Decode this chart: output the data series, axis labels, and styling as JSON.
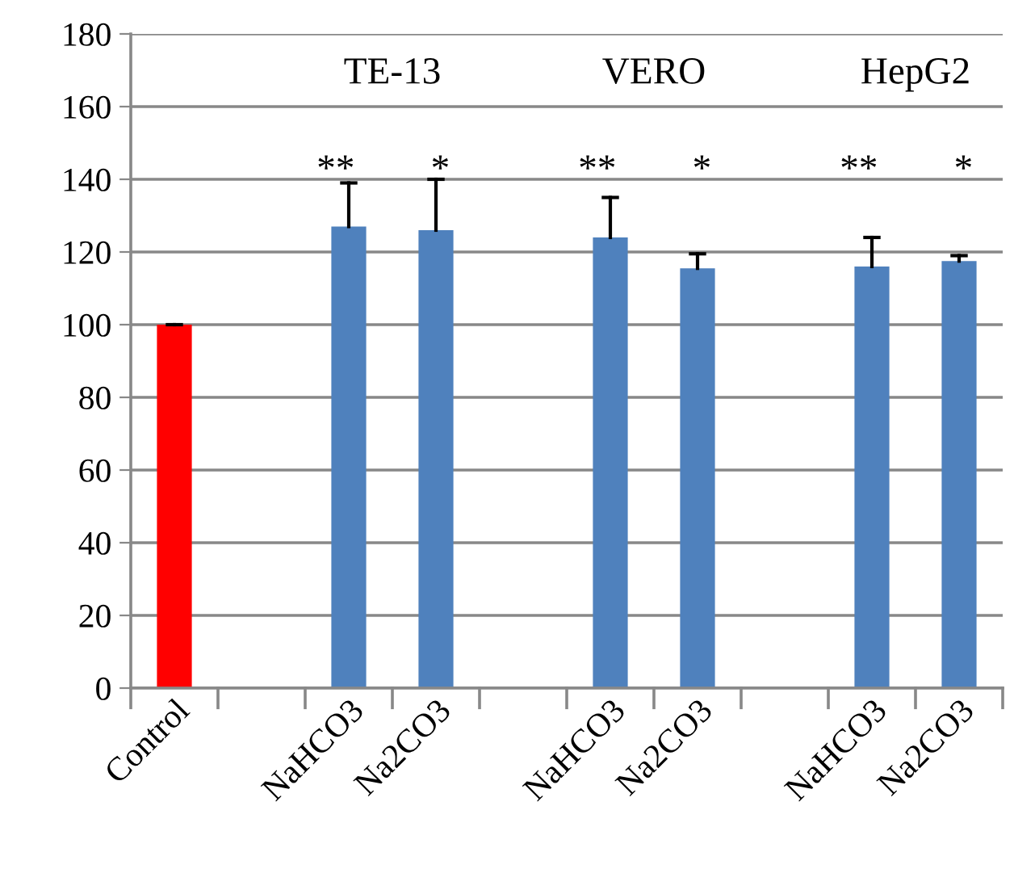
{
  "chart_data": {
    "type": "bar",
    "categories": [
      "Control",
      null,
      "NaHCO3",
      "Na2CO3",
      null,
      "NaHCO3",
      "Na2CO3",
      null,
      "NaHCO3",
      "Na2CO3"
    ],
    "values": [
      100,
      null,
      127,
      126,
      null,
      124,
      115.5,
      null,
      116,
      117.5
    ],
    "colors": [
      "#ff0000",
      null,
      "#4f81bd",
      "#4f81bd",
      null,
      "#4f81bd",
      "#4f81bd",
      null,
      "#4f81bd",
      "#4f81bd"
    ],
    "errors": [
      [
        100,
        100
      ],
      null,
      [
        127,
        139
      ],
      [
        126,
        140
      ],
      null,
      [
        124,
        135
      ],
      [
        115.5,
        119.5
      ],
      null,
      [
        116,
        124
      ],
      [
        117.5,
        119
      ]
    ],
    "ylim": [
      0,
      180
    ],
    "yticks": [
      0,
      20,
      40,
      60,
      80,
      100,
      120,
      140,
      160,
      180
    ],
    "grid": "y",
    "annotations": [
      "TE-13",
      "VERO",
      "HepG2",
      "**",
      "*",
      "**",
      "*",
      "**",
      "*"
    ]
  }
}
